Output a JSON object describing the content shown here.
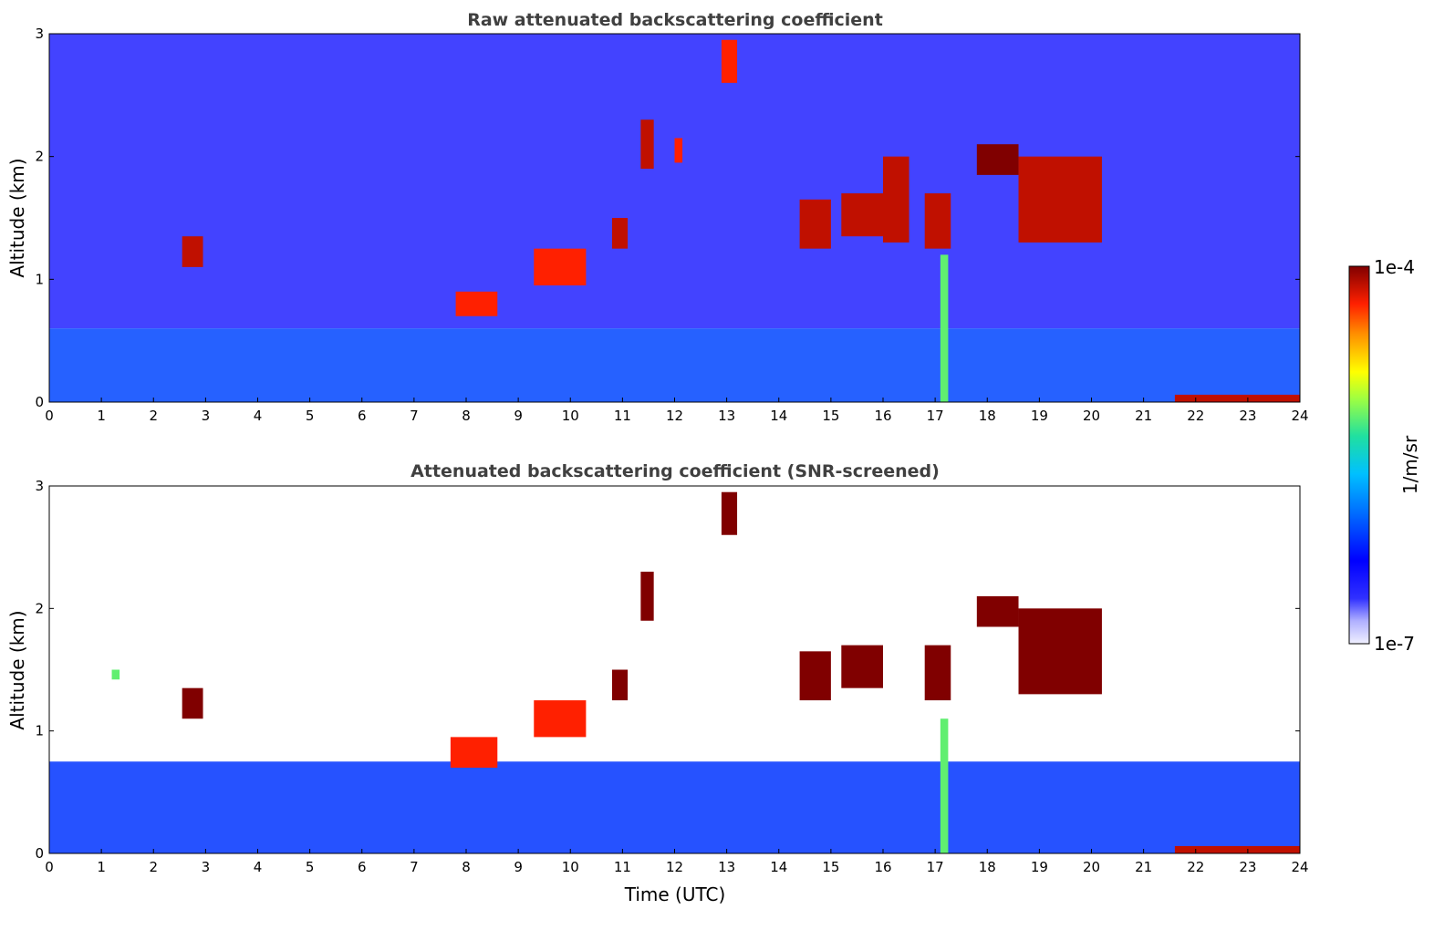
{
  "chart_data": [
    {
      "type": "heatmap",
      "title": "Raw attenuated backscattering coefficient",
      "xlabel": "",
      "ylabel": "Altitude (km)",
      "xlim": [
        0,
        24
      ],
      "ylim": [
        0,
        3
      ],
      "x_ticks": [
        "0",
        "1",
        "2",
        "3",
        "4",
        "5",
        "6",
        "7",
        "8",
        "9",
        "10",
        "11",
        "12",
        "13",
        "14",
        "15",
        "16",
        "17",
        "18",
        "19",
        "20",
        "21",
        "22",
        "23",
        "24"
      ],
      "y_ticks": [
        "0",
        "1",
        "2",
        "3"
      ],
      "layers": [
        {
          "name": "noise-upper",
          "x": [
            0,
            24
          ],
          "y": [
            0.6,
            3.0
          ],
          "level": 0.15
        },
        {
          "name": "boundary-layer",
          "x": [
            0,
            24
          ],
          "y": [
            0.0,
            0.6
          ],
          "level": 0.3
        }
      ],
      "features": [
        {
          "x": [
            2.55,
            2.95
          ],
          "y": [
            1.1,
            1.35
          ],
          "level": 0.95
        },
        {
          "x": [
            7.8,
            8.6
          ],
          "y": [
            0.7,
            0.9
          ],
          "level": 0.9
        },
        {
          "x": [
            9.3,
            10.3
          ],
          "y": [
            0.95,
            1.25
          ],
          "level": 0.9
        },
        {
          "x": [
            10.8,
            11.1
          ],
          "y": [
            1.25,
            1.5
          ],
          "level": 0.95
        },
        {
          "x": [
            11.35,
            11.6
          ],
          "y": [
            1.9,
            2.3
          ],
          "level": 0.95
        },
        {
          "x": [
            12.0,
            12.15
          ],
          "y": [
            1.95,
            2.15
          ],
          "level": 0.9
        },
        {
          "x": [
            12.9,
            13.2
          ],
          "y": [
            2.6,
            2.95
          ],
          "level": 0.9
        },
        {
          "x": [
            14.4,
            15.0
          ],
          "y": [
            1.25,
            1.65
          ],
          "level": 0.95
        },
        {
          "x": [
            15.2,
            16.0
          ],
          "y": [
            1.35,
            1.7
          ],
          "level": 0.95
        },
        {
          "x": [
            16.0,
            16.5
          ],
          "y": [
            1.3,
            2.0
          ],
          "level": 0.95
        },
        {
          "x": [
            16.8,
            17.3
          ],
          "y": [
            1.25,
            1.7
          ],
          "level": 0.95
        },
        {
          "x": [
            17.1,
            17.25
          ],
          "y": [
            0.0,
            1.2
          ],
          "level": 0.6
        },
        {
          "x": [
            17.8,
            18.6
          ],
          "y": [
            1.85,
            2.1
          ],
          "level": 1.0
        },
        {
          "x": [
            18.6,
            20.2
          ],
          "y": [
            1.3,
            2.0
          ],
          "level": 0.95
        },
        {
          "x": [
            21.6,
            24.0
          ],
          "y": [
            0.0,
            0.06
          ],
          "level": 0.95
        }
      ]
    },
    {
      "type": "heatmap",
      "title": "Attenuated backscattering coefficient (SNR-screened)",
      "xlabel": "Time (UTC)",
      "ylabel": "Altitude (km)",
      "xlim": [
        0,
        24
      ],
      "ylim": [
        0,
        3
      ],
      "x_ticks": [
        "0",
        "1",
        "2",
        "3",
        "4",
        "5",
        "6",
        "7",
        "8",
        "9",
        "10",
        "11",
        "12",
        "13",
        "14",
        "15",
        "16",
        "17",
        "18",
        "19",
        "20",
        "21",
        "22",
        "23",
        "24"
      ],
      "y_ticks": [
        "0",
        "1",
        "2",
        "3"
      ],
      "layers": [
        {
          "name": "boundary-layer",
          "x": [
            0,
            24
          ],
          "y": [
            0.0,
            0.75
          ],
          "level": 0.28
        }
      ],
      "features": [
        {
          "x": [
            1.2,
            1.35
          ],
          "y": [
            1.42,
            1.5
          ],
          "level": 0.6
        },
        {
          "x": [
            2.55,
            2.95
          ],
          "y": [
            1.1,
            1.35
          ],
          "level": 1.0
        },
        {
          "x": [
            7.7,
            8.6
          ],
          "y": [
            0.7,
            0.95
          ],
          "level": 0.9
        },
        {
          "x": [
            9.3,
            10.3
          ],
          "y": [
            0.95,
            1.25
          ],
          "level": 0.9
        },
        {
          "x": [
            10.8,
            11.1
          ],
          "y": [
            1.25,
            1.5
          ],
          "level": 1.0
        },
        {
          "x": [
            11.35,
            11.6
          ],
          "y": [
            1.9,
            2.3
          ],
          "level": 1.0
        },
        {
          "x": [
            12.9,
            13.2
          ],
          "y": [
            2.6,
            2.95
          ],
          "level": 1.0
        },
        {
          "x": [
            14.4,
            15.0
          ],
          "y": [
            1.25,
            1.65
          ],
          "level": 1.0
        },
        {
          "x": [
            15.2,
            16.0
          ],
          "y": [
            1.35,
            1.7
          ],
          "level": 1.0
        },
        {
          "x": [
            16.8,
            17.3
          ],
          "y": [
            1.25,
            1.7
          ],
          "level": 1.0
        },
        {
          "x": [
            17.1,
            17.25
          ],
          "y": [
            0.0,
            1.1
          ],
          "level": 0.6
        },
        {
          "x": [
            17.8,
            18.6
          ],
          "y": [
            1.85,
            2.1
          ],
          "level": 1.0
        },
        {
          "x": [
            18.6,
            20.2
          ],
          "y": [
            1.3,
            2.0
          ],
          "level": 1.0
        },
        {
          "x": [
            21.6,
            24.0
          ],
          "y": [
            0.0,
            0.06
          ],
          "level": 0.95
        }
      ]
    }
  ],
  "colorbar": {
    "label": "1/m/sr",
    "max_label": "1e-4",
    "min_label": "1e-7",
    "colormap": "jet",
    "scale": "log"
  }
}
